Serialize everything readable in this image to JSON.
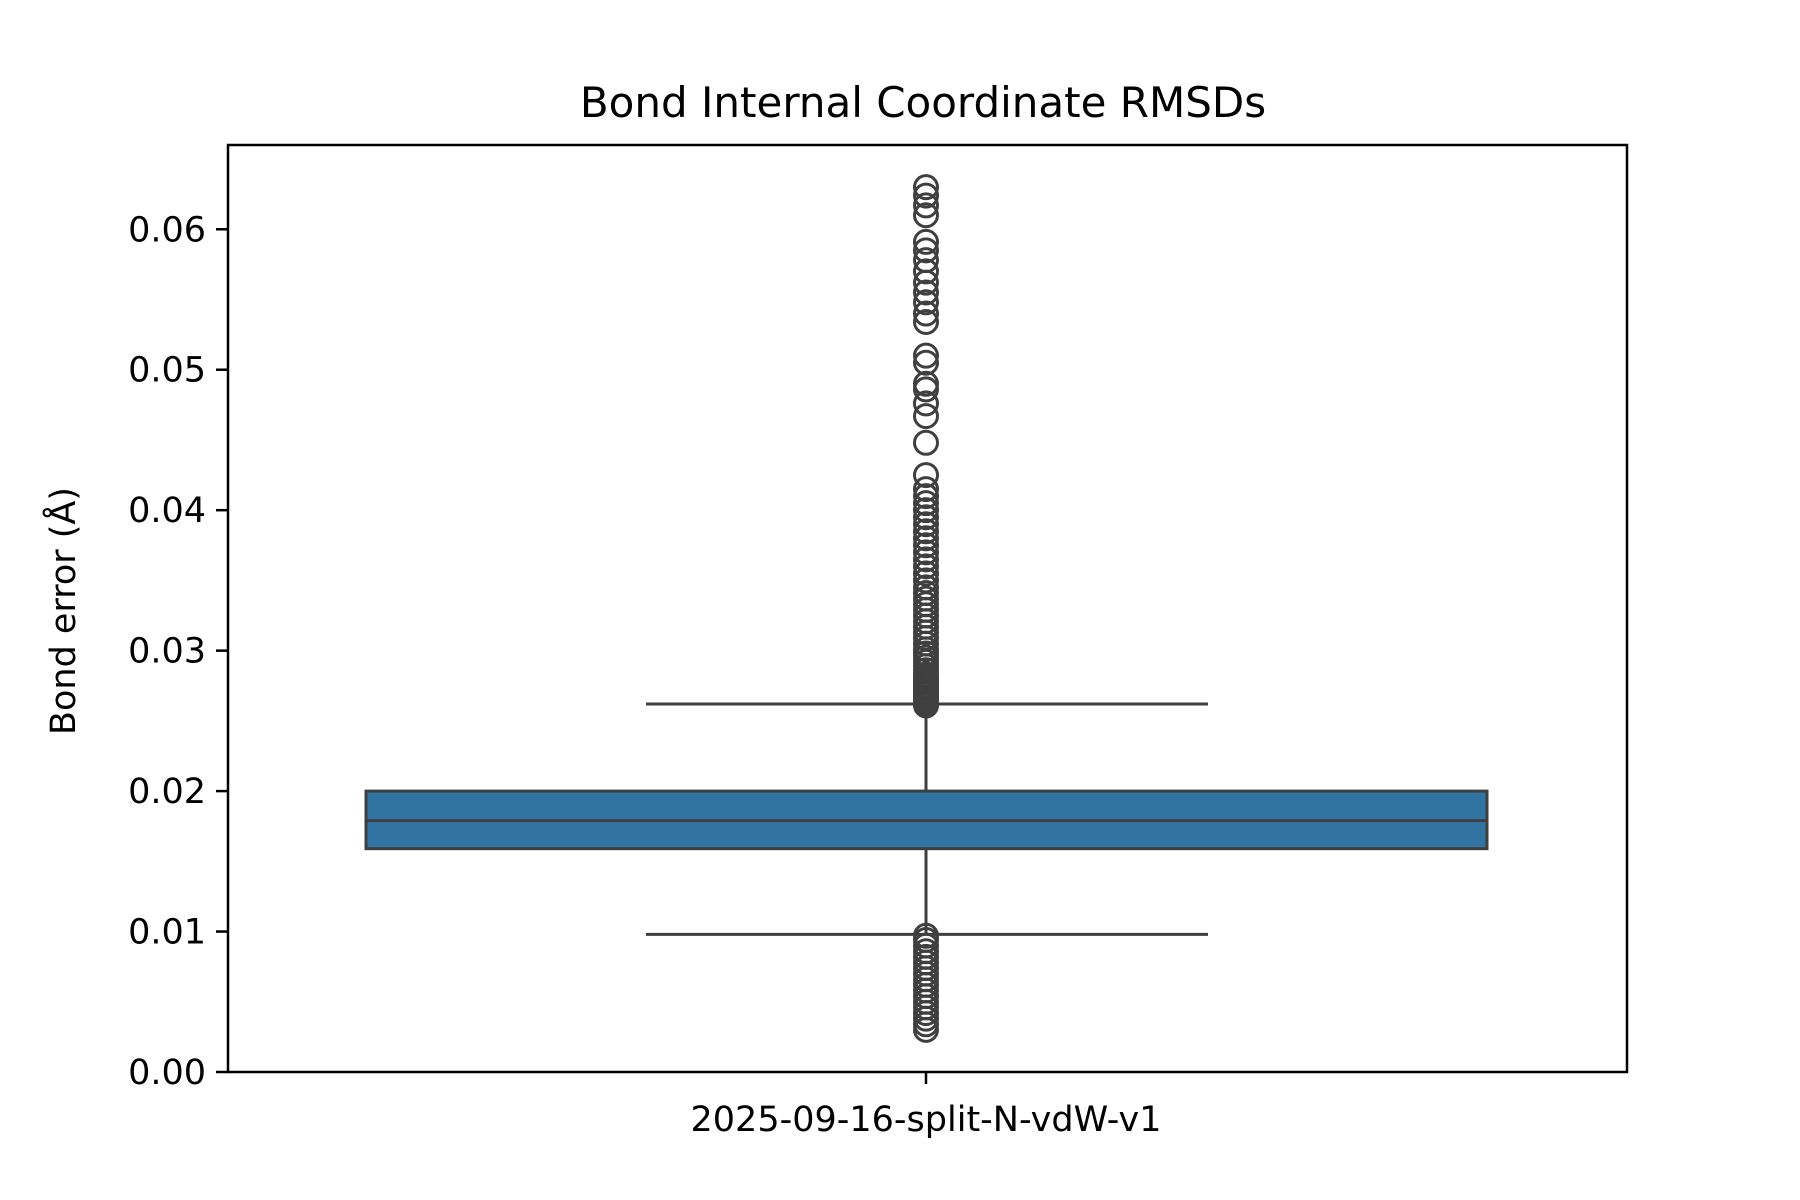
{
  "chart_data": {
    "type": "box",
    "title": "Bond Internal Coordinate RMSDs",
    "xlabel": "",
    "ylabel": "Bond error (Å)",
    "ylim": [
      0.0,
      0.066
    ],
    "yticks": [
      "0.00",
      "0.01",
      "0.02",
      "0.03",
      "0.04",
      "0.05",
      "0.06"
    ],
    "ytick_values": [
      0.0,
      0.01,
      0.02,
      0.03,
      0.04,
      0.05,
      0.06
    ],
    "categories": [
      "2025-09-16-split-N-vdW-v1"
    ],
    "box": {
      "whisker_low": 0.0098,
      "q1": 0.0159,
      "median": 0.0179,
      "q3": 0.02,
      "whisker_high": 0.0262
    },
    "outliers_high": [
      0.0261,
      0.0263,
      0.0265,
      0.0267,
      0.0269,
      0.0271,
      0.0273,
      0.0275,
      0.0277,
      0.0279,
      0.0281,
      0.0283,
      0.0286,
      0.0289,
      0.0292,
      0.0295,
      0.0298,
      0.0301,
      0.0305,
      0.0309,
      0.0313,
      0.0317,
      0.0321,
      0.0325,
      0.0329,
      0.0333,
      0.0337,
      0.0341,
      0.0345,
      0.035,
      0.0355,
      0.036,
      0.0365,
      0.037,
      0.0375,
      0.038,
      0.0385,
      0.039,
      0.0395,
      0.04,
      0.0405,
      0.041,
      0.0415,
      0.0425,
      0.0448,
      0.0467,
      0.0476,
      0.0486,
      0.049,
      0.0505,
      0.051,
      0.0534,
      0.054,
      0.0548,
      0.0555,
      0.0562,
      0.057,
      0.0578,
      0.0585,
      0.0591,
      0.061,
      0.0617,
      0.0624,
      0.063
    ],
    "outliers_low": [
      0.003,
      0.0034,
      0.0038,
      0.0042,
      0.0046,
      0.005,
      0.0054,
      0.0058,
      0.0062,
      0.0066,
      0.007,
      0.0074,
      0.0078,
      0.0082,
      0.0086,
      0.009,
      0.0094,
      0.0097
    ],
    "box_color": "#3274a1",
    "line_color": "#3f3f3f",
    "grid": false,
    "legend": "none"
  }
}
